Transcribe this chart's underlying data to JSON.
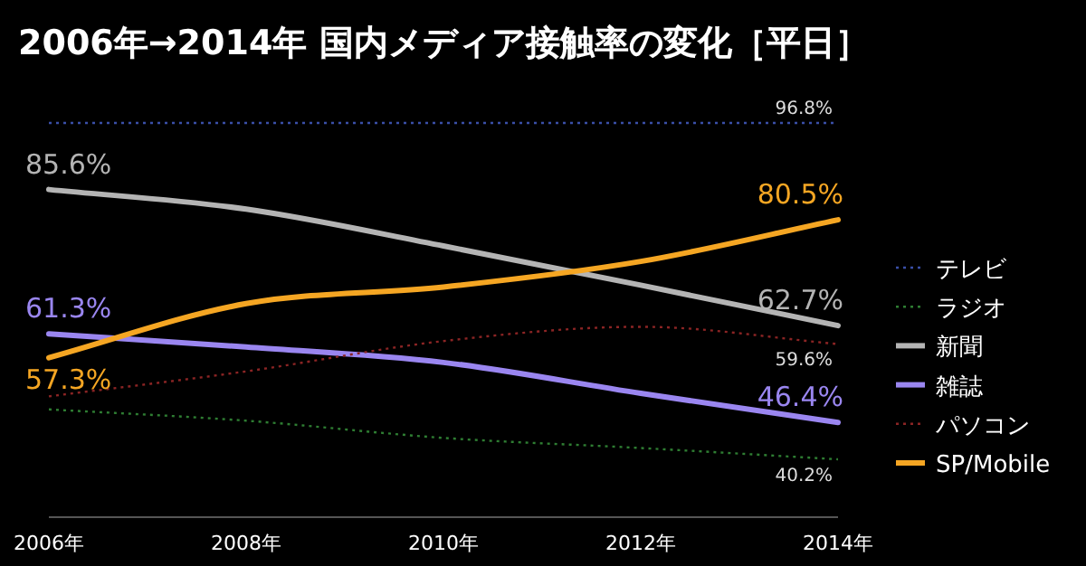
{
  "chart_data": {
    "type": "line",
    "title": "2006年→2014年 国内メディア接触率の変化［平日］",
    "x": [
      2006,
      2008,
      2010,
      2012,
      2014
    ],
    "xlim": [
      2006,
      2014
    ],
    "xticks": [
      {
        "value": 2006,
        "label": "2006年"
      },
      {
        "value": 2008,
        "label": "2008年"
      },
      {
        "value": 2010,
        "label": "2010年"
      },
      {
        "value": 2012,
        "label": "2012年"
      },
      {
        "value": 2014,
        "label": "2014年"
      }
    ],
    "tick_labels": "x",
    "grid": false,
    "legend": "right",
    "marker": "none",
    "series": [
      {
        "name": "テレビ",
        "color": "#3a4fa8",
        "line_style": "dotted",
        "values": [
          96.8,
          96.8,
          96.8,
          96.8,
          96.8
        ],
        "value_labels": [
          null,
          null,
          null,
          null,
          "96.8%"
        ]
      },
      {
        "name": "ラジオ",
        "color": "#2e7d32",
        "line_style": "dotted",
        "values": [
          48.6,
          46.7,
          43.8,
          42.1,
          40.2
        ],
        "value_labels": [
          null,
          null,
          null,
          null,
          "40.2%"
        ]
      },
      {
        "name": "新聞",
        "color": "#b4b4b4",
        "line_style": "solid",
        "values": [
          85.6,
          82.3,
          76.1,
          69.5,
          62.7
        ],
        "value_labels": [
          "85.6%",
          null,
          null,
          null,
          "62.7%"
        ]
      },
      {
        "name": "雑誌",
        "color": "#9a86f0",
        "line_style": "solid",
        "values": [
          61.3,
          59.1,
          56.5,
          51.3,
          46.4
        ],
        "value_labels": [
          "61.3%",
          null,
          null,
          null,
          "46.4%"
        ]
      },
      {
        "name": "パソコン",
        "color": "#8b2424",
        "line_style": "dotted",
        "values": [
          50.8,
          55.0,
          60.1,
          62.5,
          59.6
        ],
        "value_labels": [
          null,
          null,
          null,
          null,
          "59.6%"
        ]
      },
      {
        "name": "SP/Mobile",
        "color": "#f5a623",
        "line_style": "solid",
        "values": [
          57.3,
          66.4,
          69.2,
          73.5,
          80.5
        ],
        "value_labels": [
          "57.3%",
          null,
          null,
          null,
          "80.5%"
        ]
      }
    ]
  }
}
